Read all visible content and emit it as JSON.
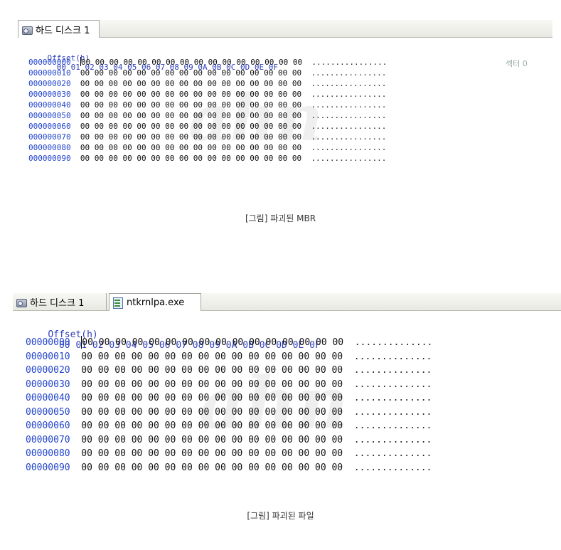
{
  "panel1": {
    "tab_label": "하드 디스크 1",
    "header_offset": "Offset(h)",
    "columns": [
      "00",
      "01",
      "02",
      "03",
      "04",
      "05",
      "06",
      "07",
      "08",
      "09",
      "0A",
      "0B",
      "0C",
      "0D",
      "0E",
      "0F"
    ],
    "rows": [
      {
        "offset": "000000000",
        "hex": "00 00 00 00 00 00 00 00 00 00 00 00 00 00 00 00",
        "ascii": "................"
      },
      {
        "offset": "000000010",
        "hex": "00 00 00 00 00 00 00 00 00 00 00 00 00 00 00 00",
        "ascii": "................"
      },
      {
        "offset": "000000020",
        "hex": "00 00 00 00 00 00 00 00 00 00 00 00 00 00 00 00",
        "ascii": "................"
      },
      {
        "offset": "000000030",
        "hex": "00 00 00 00 00 00 00 00 00 00 00 00 00 00 00 00",
        "ascii": "................"
      },
      {
        "offset": "000000040",
        "hex": "00 00 00 00 00 00 00 00 00 00 00 00 00 00 00 00",
        "ascii": "................"
      },
      {
        "offset": "000000050",
        "hex": "00 00 00 00 00 00 00 00 00 00 00 00 00 00 00 00",
        "ascii": "................"
      },
      {
        "offset": "000000060",
        "hex": "00 00 00 00 00 00 00 00 00 00 00 00 00 00 00 00",
        "ascii": "................"
      },
      {
        "offset": "000000070",
        "hex": "00 00 00 00 00 00 00 00 00 00 00 00 00 00 00 00",
        "ascii": "................"
      },
      {
        "offset": "000000080",
        "hex": "00 00 00 00 00 00 00 00 00 00 00 00 00 00 00 00",
        "ascii": "................"
      },
      {
        "offset": "000000090",
        "hex": "00 00 00 00 00 00 00 00 00 00 00 00 00 00 00 00",
        "ascii": "................"
      }
    ],
    "sector_label": "섹터 0",
    "caption": "[그림] 파괴된 MBR"
  },
  "panel2": {
    "tabs": [
      {
        "label": "하드 디스크 1",
        "icon": "hard-disk-icon"
      },
      {
        "label": "ntkrnlpa.exe",
        "icon": "exe-file-icon"
      }
    ],
    "header_offset": "Offset(h)",
    "columns": [
      "00",
      "01",
      "02",
      "03",
      "04",
      "05",
      "06",
      "07",
      "08",
      "09",
      "0A",
      "0B",
      "0C",
      "0D",
      "0E",
      "0F"
    ],
    "rows": [
      {
        "offset": "00000000",
        "hex": "00 00 00 00 00 00 00 00 00 00 00 00 00 00 00 00",
        "ascii": ".............."
      },
      {
        "offset": "00000010",
        "hex": "00 00 00 00 00 00 00 00 00 00 00 00 00 00 00 00",
        "ascii": ".............."
      },
      {
        "offset": "00000020",
        "hex": "00 00 00 00 00 00 00 00 00 00 00 00 00 00 00 00",
        "ascii": ".............."
      },
      {
        "offset": "00000030",
        "hex": "00 00 00 00 00 00 00 00 00 00 00 00 00 00 00 00",
        "ascii": ".............."
      },
      {
        "offset": "00000040",
        "hex": "00 00 00 00 00 00 00 00 00 00 00 00 00 00 00 00",
        "ascii": ".............."
      },
      {
        "offset": "00000050",
        "hex": "00 00 00 00 00 00 00 00 00 00 00 00 00 00 00 00",
        "ascii": ".............."
      },
      {
        "offset": "00000060",
        "hex": "00 00 00 00 00 00 00 00 00 00 00 00 00 00 00 00",
        "ascii": ".............."
      },
      {
        "offset": "00000070",
        "hex": "00 00 00 00 00 00 00 00 00 00 00 00 00 00 00 00",
        "ascii": ".............."
      },
      {
        "offset": "00000080",
        "hex": "00 00 00 00 00 00 00 00 00 00 00 00 00 00 00 00",
        "ascii": ".............."
      },
      {
        "offset": "00000090",
        "hex": "00 00 00 00 00 00 00 00 00 00 00 00 00 00 00 00",
        "ascii": ".............."
      }
    ],
    "caption": "[그림] 파괴된 파일"
  }
}
